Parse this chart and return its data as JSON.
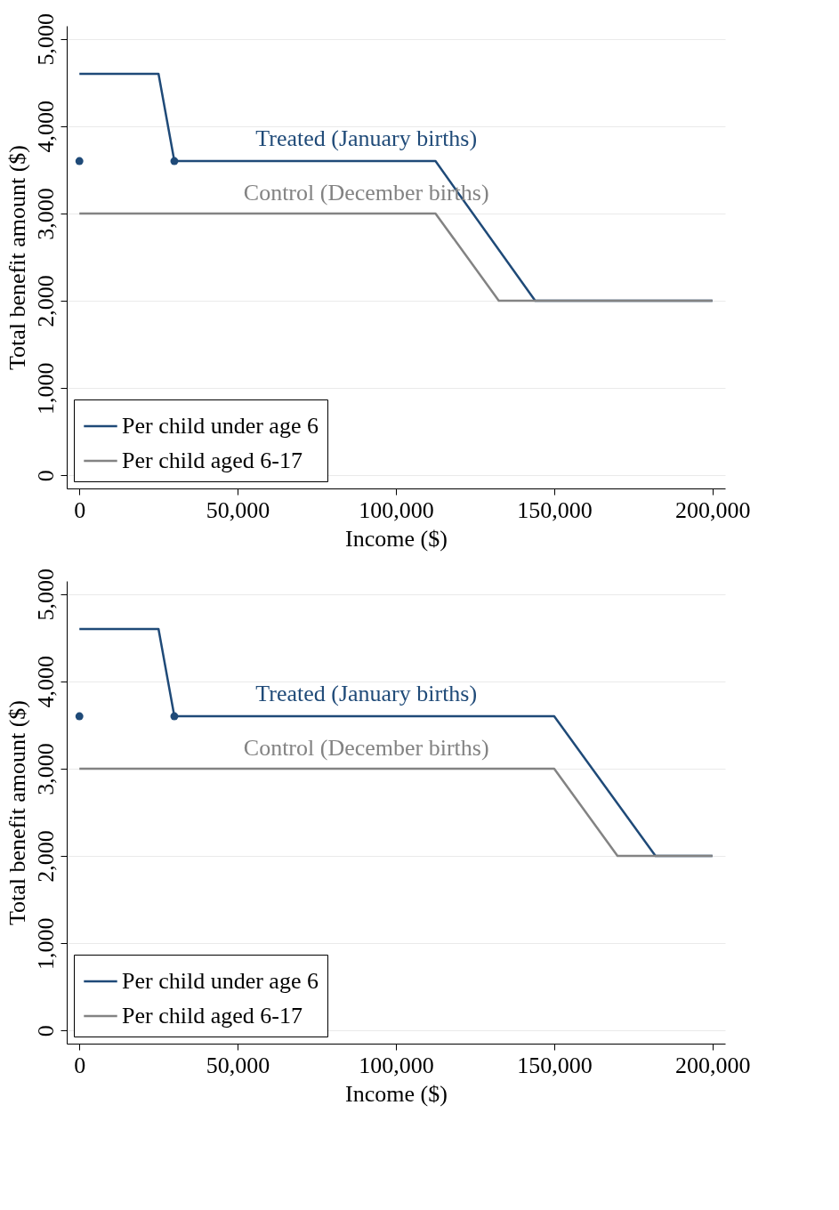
{
  "chart_data": [
    {
      "type": "line",
      "xlabel": "Income ($)",
      "ylabel": "Total benefit amount ($)",
      "xlim": [
        -4000,
        204000
      ],
      "ylim": [
        -150,
        5150
      ],
      "xticks": [
        0,
        {
          "value": 50000,
          "label": "50,000"
        },
        {
          "value": 100000,
          "label": "100,000"
        },
        {
          "value": 150000,
          "label": "150,000"
        },
        {
          "value": 200000,
          "label": "200,000"
        }
      ],
      "yticks": [
        0,
        {
          "value": 1000,
          "label": "1,000"
        },
        {
          "value": 2000,
          "label": "2,000"
        },
        {
          "value": 3000,
          "label": "3,000"
        },
        {
          "value": 4000,
          "label": "4,000"
        },
        {
          "value": 5000,
          "label": "5,000"
        }
      ],
      "grid": "y",
      "legend": "bottom left",
      "line_style": "solid",
      "annotations": [
        "Treated (January births)",
        "Control (December births)"
      ],
      "series": [
        {
          "name": "Per child under age 6",
          "color": "#1f4a78",
          "x": [
            0,
            25000,
            30000,
            112500,
            144000,
            200000
          ],
          "values": [
            4600,
            4600,
            3600,
            3600,
            2000,
            2000
          ]
        },
        {
          "name": "Per child aged 6-17",
          "color": "#838383",
          "x": [
            0,
            112500,
            132500,
            200000
          ],
          "values": [
            3000,
            3000,
            2000,
            2000
          ]
        },
        {
          "type": "scatter",
          "marker": "circle",
          "color": "#1f4a78",
          "x": [
            0,
            30000
          ],
          "values": [
            3600,
            3600
          ]
        }
      ]
    },
    {
      "type": "line",
      "xlabel": "Income ($)",
      "ylabel": "Total benefit amount ($)",
      "xlim": [
        -4000,
        204000
      ],
      "ylim": [
        -150,
        5150
      ],
      "xticks": [
        0,
        {
          "value": 50000,
          "label": "50,000"
        },
        {
          "value": 100000,
          "label": "100,000"
        },
        {
          "value": 150000,
          "label": "150,000"
        },
        {
          "value": 200000,
          "label": "200,000"
        }
      ],
      "yticks": [
        0,
        {
          "value": 1000,
          "label": "1,000"
        },
        {
          "value": 2000,
          "label": "2,000"
        },
        {
          "value": 3000,
          "label": "3,000"
        },
        {
          "value": 4000,
          "label": "4,000"
        },
        {
          "value": 5000,
          "label": "5,000"
        }
      ],
      "grid": "y",
      "legend": "bottom left",
      "line_style": "solid",
      "annotations": [
        "Treated (January births)",
        "Control (December births)"
      ],
      "series": [
        {
          "name": "Per child under age 6",
          "color": "#1f4a78",
          "x": [
            0,
            25000,
            30000,
            150000,
            182000,
            200000
          ],
          "values": [
            4600,
            4600,
            3600,
            3600,
            2000,
            2000
          ]
        },
        {
          "name": "Per child aged 6-17",
          "color": "#838383",
          "x": [
            0,
            150000,
            170000,
            200000
          ],
          "values": [
            3000,
            3000,
            2000,
            2000
          ]
        },
        {
          "type": "scatter",
          "marker": "circle",
          "color": "#1f4a78",
          "x": [
            0,
            30000
          ],
          "values": [
            3600,
            3600
          ]
        }
      ]
    }
  ]
}
